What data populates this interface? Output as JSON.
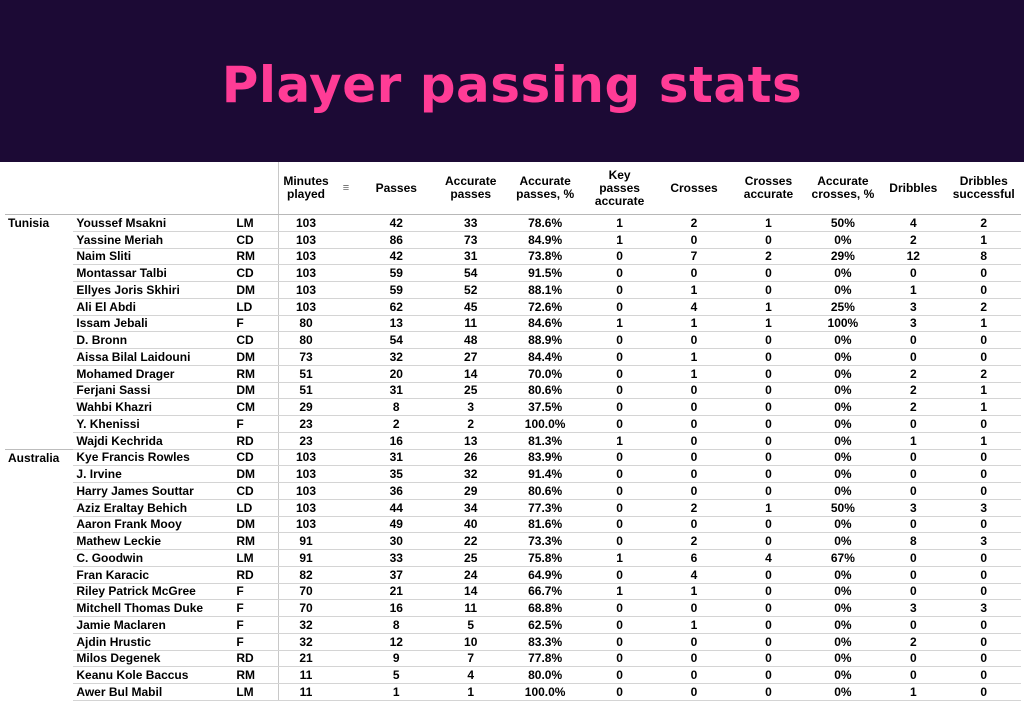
{
  "title": "Player passing stats",
  "table": {
    "columns": [
      "Minutes played",
      "Passes",
      "Accurate passes",
      "Accurate passes, %",
      "Key passes accurate",
      "Crosses",
      "Crosses accurate",
      "Accurate crosses, %",
      "Dribbles",
      "Dribbles successful"
    ],
    "column_lines": [
      [
        "Minutes",
        "played"
      ],
      [
        "Passes"
      ],
      [
        "Accurate",
        "passes"
      ],
      [
        "Accurate",
        "passes, %"
      ],
      [
        "Key",
        "passes",
        "accurate"
      ],
      [
        "Crosses"
      ],
      [
        "Crosses",
        "accurate"
      ],
      [
        "Accurate",
        "crosses, %"
      ],
      [
        "Dribbles"
      ],
      [
        "Dribbles",
        "successful"
      ]
    ],
    "sort_icon": "sort-descending-icon",
    "teams": [
      {
        "name": "Tunisia",
        "players": [
          [
            "Youssef Msakni",
            "LM",
            "103",
            "42",
            "33",
            "78.6%",
            "1",
            "2",
            "1",
            "50%",
            "4",
            "2"
          ],
          [
            "Yassine Meriah",
            "CD",
            "103",
            "86",
            "73",
            "84.9%",
            "1",
            "0",
            "0",
            "0%",
            "2",
            "1"
          ],
          [
            "Naim Sliti",
            "RM",
            "103",
            "42",
            "31",
            "73.8%",
            "0",
            "7",
            "2",
            "29%",
            "12",
            "8"
          ],
          [
            "Montassar Talbi",
            "CD",
            "103",
            "59",
            "54",
            "91.5%",
            "0",
            "0",
            "0",
            "0%",
            "0",
            "0"
          ],
          [
            "Ellyes Joris Skhiri",
            "DM",
            "103",
            "59",
            "52",
            "88.1%",
            "0",
            "1",
            "0",
            "0%",
            "1",
            "0"
          ],
          [
            "Ali El Abdi",
            "LD",
            "103",
            "62",
            "45",
            "72.6%",
            "0",
            "4",
            "1",
            "25%",
            "3",
            "2"
          ],
          [
            "Issam Jebali",
            "F",
            "80",
            "13",
            "11",
            "84.6%",
            "1",
            "1",
            "1",
            "100%",
            "3",
            "1"
          ],
          [
            "D. Bronn",
            "CD",
            "80",
            "54",
            "48",
            "88.9%",
            "0",
            "0",
            "0",
            "0%",
            "0",
            "0"
          ],
          [
            "Aissa Bilal Laidouni",
            "DM",
            "73",
            "32",
            "27",
            "84.4%",
            "0",
            "1",
            "0",
            "0%",
            "0",
            "0"
          ],
          [
            "Mohamed Drager",
            "RM",
            "51",
            "20",
            "14",
            "70.0%",
            "0",
            "1",
            "0",
            "0%",
            "2",
            "2"
          ],
          [
            "Ferjani Sassi",
            "DM",
            "51",
            "31",
            "25",
            "80.6%",
            "0",
            "0",
            "0",
            "0%",
            "2",
            "1"
          ],
          [
            "Wahbi Khazri",
            "CM",
            "29",
            "8",
            "3",
            "37.5%",
            "0",
            "0",
            "0",
            "0%",
            "2",
            "1"
          ],
          [
            "Y. Khenissi",
            "F",
            "23",
            "2",
            "2",
            "100.0%",
            "0",
            "0",
            "0",
            "0%",
            "0",
            "0"
          ],
          [
            "Wajdi Kechrida",
            "RD",
            "23",
            "16",
            "13",
            "81.3%",
            "1",
            "0",
            "0",
            "0%",
            "1",
            "1"
          ]
        ]
      },
      {
        "name": "Australia",
        "players": [
          [
            "Kye Francis Rowles",
            "CD",
            "103",
            "31",
            "26",
            "83.9%",
            "0",
            "0",
            "0",
            "0%",
            "0",
            "0"
          ],
          [
            "J. Irvine",
            "DM",
            "103",
            "35",
            "32",
            "91.4%",
            "0",
            "0",
            "0",
            "0%",
            "0",
            "0"
          ],
          [
            "Harry James Souttar",
            "CD",
            "103",
            "36",
            "29",
            "80.6%",
            "0",
            "0",
            "0",
            "0%",
            "0",
            "0"
          ],
          [
            "Aziz Eraltay Behich",
            "LD",
            "103",
            "44",
            "34",
            "77.3%",
            "0",
            "2",
            "1",
            "50%",
            "3",
            "3"
          ],
          [
            "Aaron Frank Mooy",
            "DM",
            "103",
            "49",
            "40",
            "81.6%",
            "0",
            "0",
            "0",
            "0%",
            "0",
            "0"
          ],
          [
            "Mathew Leckie",
            "RM",
            "91",
            "30",
            "22",
            "73.3%",
            "0",
            "2",
            "0",
            "0%",
            "8",
            "3"
          ],
          [
            "C. Goodwin",
            "LM",
            "91",
            "33",
            "25",
            "75.8%",
            "1",
            "6",
            "4",
            "67%",
            "0",
            "0"
          ],
          [
            "Fran Karacic",
            "RD",
            "82",
            "37",
            "24",
            "64.9%",
            "0",
            "4",
            "0",
            "0%",
            "0",
            "0"
          ],
          [
            "Riley Patrick McGree",
            "F",
            "70",
            "21",
            "14",
            "66.7%",
            "1",
            "1",
            "0",
            "0%",
            "0",
            "0"
          ],
          [
            "Mitchell Thomas Duke",
            "F",
            "70",
            "16",
            "11",
            "68.8%",
            "0",
            "0",
            "0",
            "0%",
            "3",
            "3"
          ],
          [
            "Jamie Maclaren",
            "F",
            "32",
            "8",
            "5",
            "62.5%",
            "0",
            "1",
            "0",
            "0%",
            "0",
            "0"
          ],
          [
            "Ajdin Hrustic",
            "F",
            "32",
            "12",
            "10",
            "83.3%",
            "0",
            "0",
            "0",
            "0%",
            "2",
            "0"
          ],
          [
            "Milos Degenek",
            "RD",
            "21",
            "9",
            "7",
            "77.8%",
            "0",
            "0",
            "0",
            "0%",
            "0",
            "0"
          ],
          [
            "Keanu Kole Baccus",
            "RM",
            "11",
            "5",
            "4",
            "80.0%",
            "0",
            "0",
            "0",
            "0%",
            "0",
            "0"
          ],
          [
            "Awer Bul Mabil",
            "LM",
            "11",
            "1",
            "1",
            "100.0%",
            "0",
            "0",
            "0",
            "0%",
            "1",
            "0"
          ]
        ]
      }
    ]
  },
  "colors": {
    "banner_bg": "#1c0a35",
    "title_color": "#ff3c96"
  }
}
